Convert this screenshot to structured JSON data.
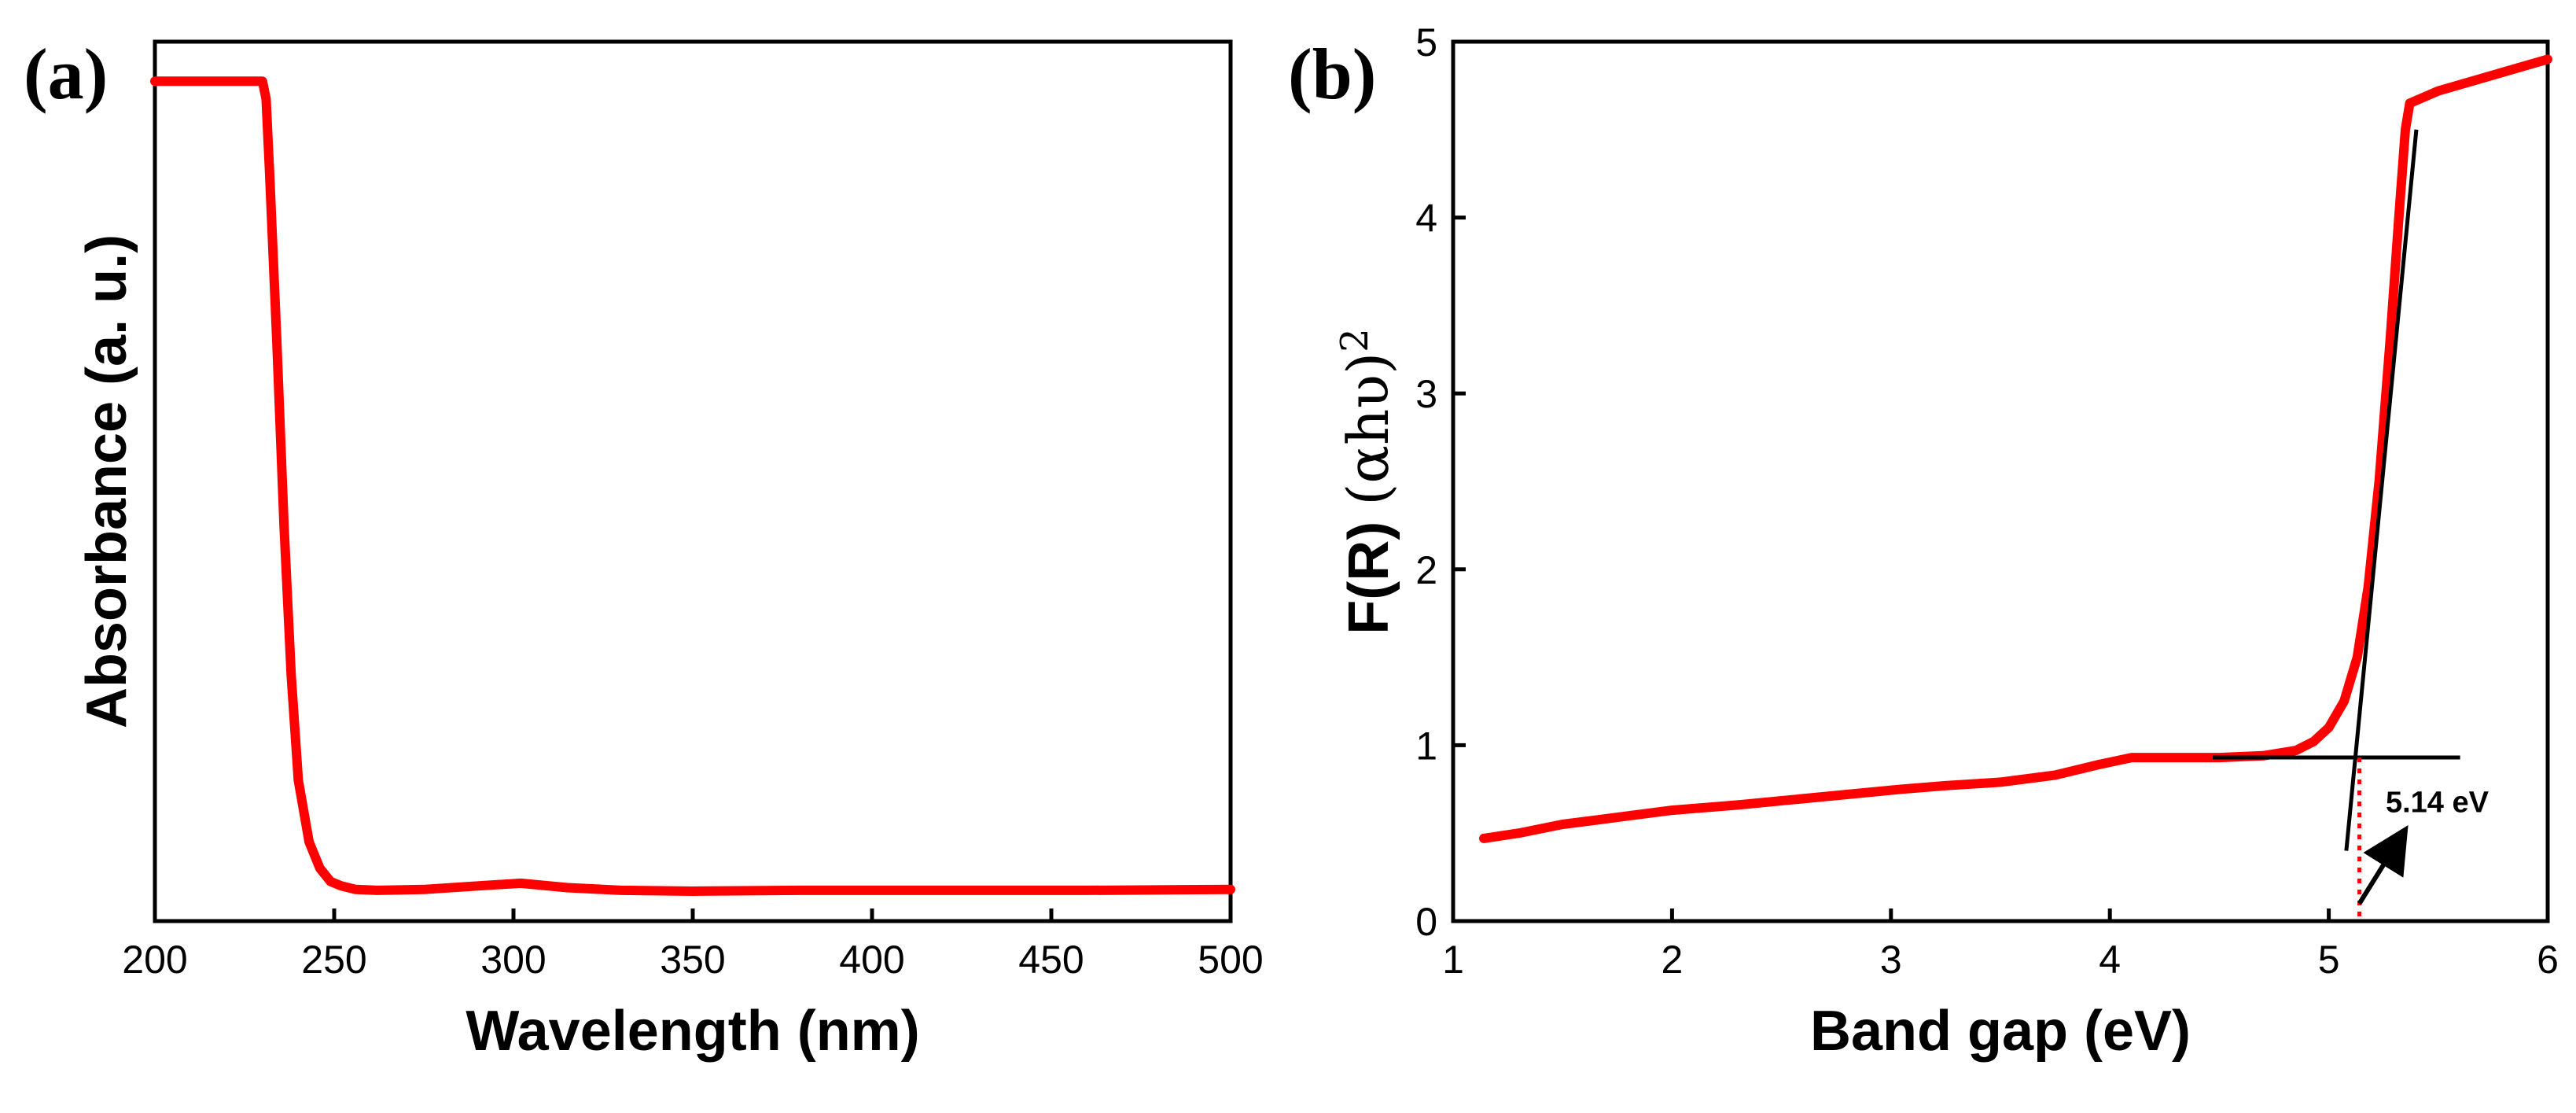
{
  "chart_data": [
    {
      "type": "line",
      "panel_label": "(a)",
      "xlabel": "Wavelength (nm)",
      "ylabel": "Absorbance (a. u.)",
      "xlim": [
        200,
        500
      ],
      "xticks": [
        200,
        250,
        300,
        350,
        400,
        450,
        500
      ],
      "ylim": [
        0,
        1
      ],
      "yticks_shown": false,
      "grid": false,
      "series": [
        {
          "color": "#ff0000",
          "x": [
            200,
            230,
            231,
            232,
            234,
            236,
            238,
            240,
            243,
            246,
            249,
            252,
            256,
            262,
            275,
            290,
            302,
            315,
            330,
            350,
            380,
            420,
            460,
            500
          ],
          "y": [
            0.955,
            0.955,
            0.935,
            0.85,
            0.66,
            0.45,
            0.28,
            0.16,
            0.09,
            0.06,
            0.045,
            0.04,
            0.036,
            0.035,
            0.036,
            0.04,
            0.043,
            0.038,
            0.035,
            0.034,
            0.035,
            0.035,
            0.035,
            0.036
          ]
        }
      ]
    },
    {
      "type": "line",
      "panel_label": "(b)",
      "xlabel": "Band gap (eV)",
      "ylabel_main": "F(R) ",
      "ylabel_greek": "(αhυ)",
      "ylabel_sup": "2",
      "xlim": [
        1,
        6
      ],
      "xticks": [
        1,
        2,
        3,
        4,
        5,
        6
      ],
      "ylim": [
        0,
        5
      ],
      "yticks": [
        0,
        1,
        2,
        3,
        4,
        5
      ],
      "grid": false,
      "series": [
        {
          "color": "#ff0000",
          "x": [
            1.14,
            1.3,
            1.5,
            1.75,
            2.0,
            2.3,
            2.55,
            2.8,
            3.05,
            3.25,
            3.5,
            3.75,
            3.95,
            4.1,
            4.3,
            4.5,
            4.7,
            4.85,
            4.93,
            5.0,
            5.07,
            5.13,
            5.18,
            5.23,
            5.28,
            5.32,
            5.35,
            5.37,
            5.5,
            5.75,
            6.0
          ],
          "y": [
            0.47,
            0.5,
            0.55,
            0.59,
            0.63,
            0.66,
            0.69,
            0.72,
            0.75,
            0.77,
            0.79,
            0.83,
            0.89,
            0.93,
            0.93,
            0.93,
            0.94,
            0.97,
            1.02,
            1.1,
            1.25,
            1.5,
            1.9,
            2.5,
            3.3,
            4.0,
            4.5,
            4.65,
            4.72,
            4.81,
            4.9
          ]
        }
      ],
      "annotations": {
        "baseline": {
          "x1": 4.47,
          "x2": 5.6,
          "y": 0.93
        },
        "tangent": {
          "x1": 5.08,
          "y1": 0.4,
          "x2": 5.4,
          "y2": 4.5
        },
        "intercept_x": 5.14,
        "intercept_y": 0.93,
        "label": "5.14 eV",
        "label_pos": {
          "x": 5.26,
          "y": 0.62
        },
        "arrow": {
          "x1": 5.14,
          "y1": 0.1,
          "x2": 5.34,
          "y2": 0.5
        }
      }
    }
  ]
}
